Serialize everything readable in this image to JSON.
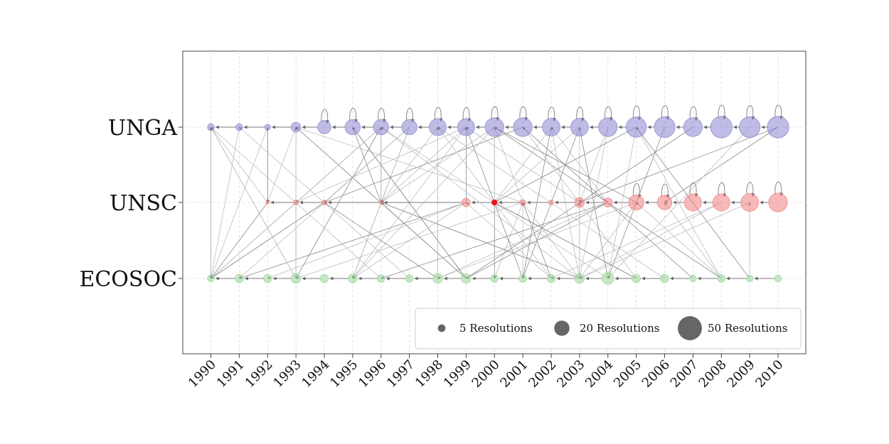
{
  "chart_data": {
    "type": "scatter",
    "title": "",
    "xlabel": "",
    "ylabel": "",
    "x": [
      "1990",
      "1991",
      "1992",
      "1993",
      "1994",
      "1995",
      "1996",
      "1997",
      "1998",
      "1999",
      "2000",
      "2001",
      "2002",
      "2003",
      "2004",
      "2005",
      "2006",
      "2007",
      "2008",
      "2009",
      "2010"
    ],
    "categories": [
      "UNGA",
      "UNSC",
      "ECOSOC"
    ],
    "grid": true,
    "legend_position": "bottom-right",
    "legend": [
      {
        "label": "5 Resolutions",
        "value": 5
      },
      {
        "label": "20 Resolutions",
        "value": 20
      },
      {
        "label": "50 Resolutions",
        "value": 50
      }
    ],
    "series": [
      {
        "category": "UNGA",
        "color": "#8a85d0",
        "values": [
          4,
          4,
          3,
          8,
          15,
          20,
          20,
          20,
          25,
          25,
          30,
          30,
          27,
          27,
          30,
          35,
          37,
          30,
          40,
          37,
          40
        ]
      },
      {
        "category": "UNSC",
        "color": "#f08080",
        "values": [
          0,
          0,
          1,
          2,
          2,
          0,
          1,
          0,
          0,
          6,
          3,
          3,
          2,
          8,
          7,
          20,
          18,
          25,
          25,
          27,
          30
        ]
      },
      {
        "category": "ECOSOC",
        "color": "#99d699",
        "values": [
          4,
          6,
          6,
          8,
          6,
          7,
          5,
          5,
          8,
          8,
          5,
          5,
          6,
          8,
          12,
          6,
          6,
          4,
          5,
          4,
          4
        ]
      }
    ]
  }
}
